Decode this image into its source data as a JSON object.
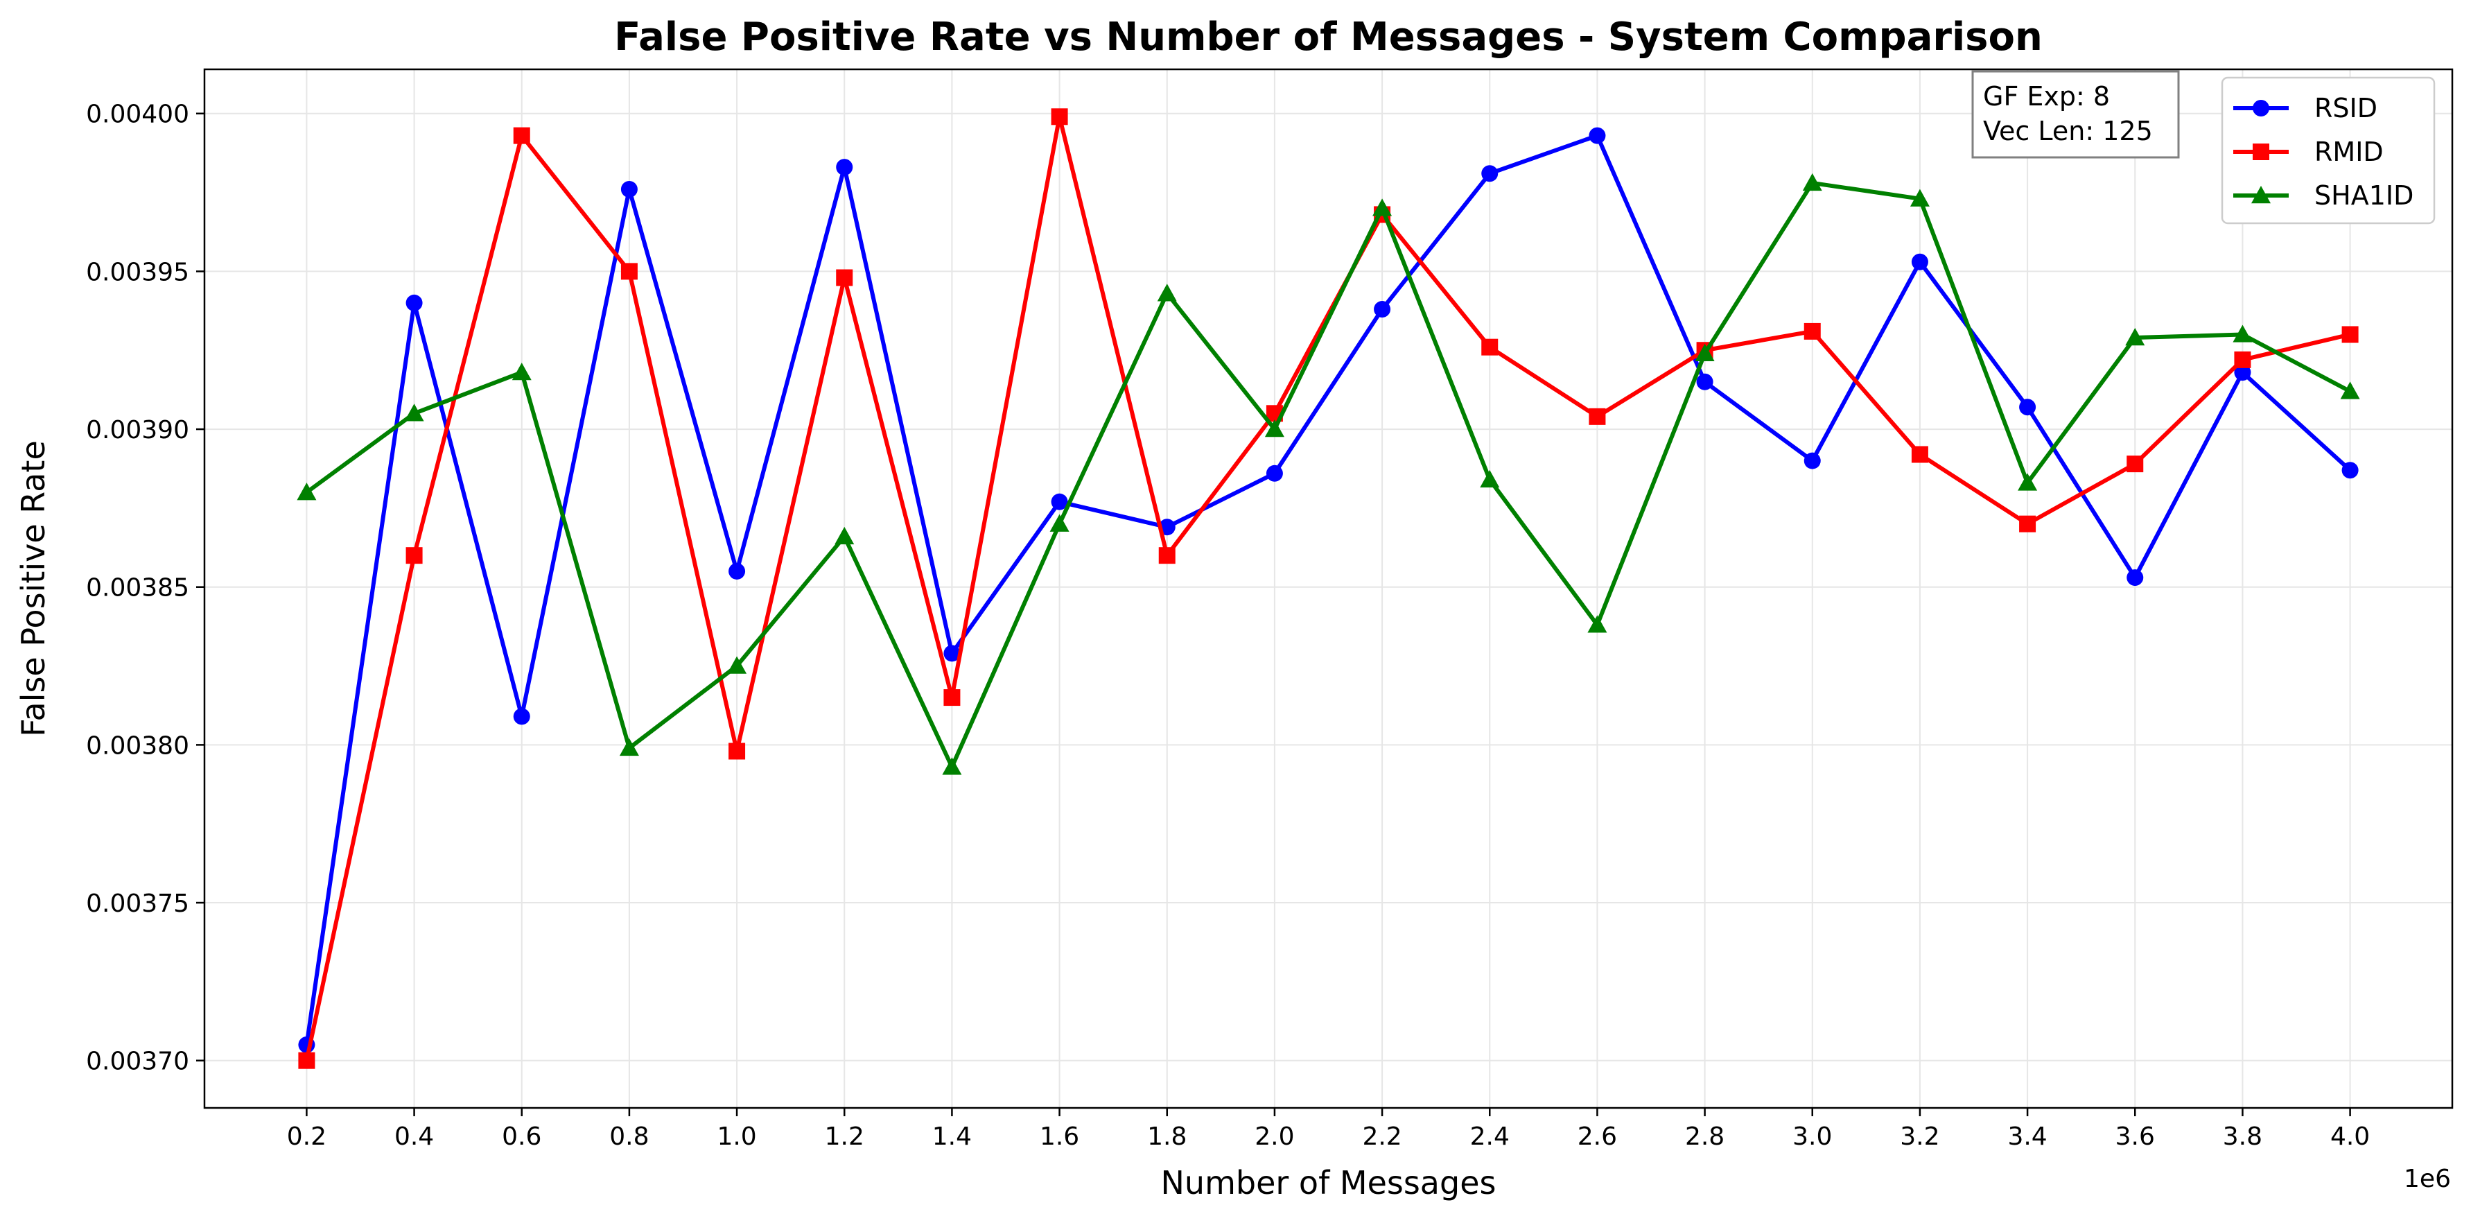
{
  "chart_data": {
    "type": "line",
    "title": "False Positive Rate vs Number of Messages - System Comparison",
    "xlabel": "Number of Messages",
    "ylabel": "False Positive Rate",
    "x_offset_label": "1e6",
    "x": [
      0.2,
      0.4,
      0.6,
      0.8,
      1.0,
      1.2,
      1.4,
      1.6,
      1.8,
      2.0,
      2.2,
      2.4,
      2.6,
      2.8,
      3.0,
      3.2,
      3.4,
      3.6,
      3.8,
      4.0
    ],
    "xticks": [
      "0.2",
      "0.4",
      "0.6",
      "0.8",
      "1.0",
      "1.2",
      "1.4",
      "1.6",
      "1.8",
      "2.0",
      "2.2",
      "2.4",
      "2.6",
      "2.8",
      "3.0",
      "3.2",
      "3.4",
      "3.6",
      "3.8",
      "4.0"
    ],
    "yticks": [
      0.0037,
      0.00375,
      0.0038,
      0.00385,
      0.0039,
      0.00395,
      0.004
    ],
    "ytick_labels": [
      "0.00370",
      "0.00375",
      "0.00380",
      "0.00385",
      "0.00390",
      "0.00395",
      "0.00400"
    ],
    "xlim": [
      0.01,
      4.19
    ],
    "ylim": [
      0.003685,
      0.004014
    ],
    "grid": true,
    "legend_position": "top-right",
    "series": [
      {
        "name": "RSID",
        "color": "#0000ff",
        "marker": "circle",
        "values": [
          0.003705,
          0.00394,
          0.003809,
          0.003976,
          0.003855,
          0.003983,
          0.003829,
          0.003877,
          0.003869,
          0.003886,
          0.003938,
          0.003981,
          0.003993,
          0.003915,
          0.00389,
          0.003953,
          0.003907,
          0.003853,
          0.003918,
          0.003887
        ]
      },
      {
        "name": "RMID",
        "color": "#ff0000",
        "marker": "square",
        "values": [
          0.0037,
          0.00386,
          0.003993,
          0.00395,
          0.003798,
          0.003948,
          0.003815,
          0.003999,
          0.00386,
          0.003905,
          0.003968,
          0.003926,
          0.003904,
          0.003925,
          0.003931,
          0.003892,
          0.00387,
          0.003889,
          0.003922,
          0.00393
        ]
      },
      {
        "name": "SHA1ID",
        "color": "#008000",
        "marker": "triangle",
        "values": [
          0.00388,
          0.003905,
          0.003918,
          0.003799,
          0.003825,
          0.003866,
          0.003793,
          0.00387,
          0.003943,
          0.0039,
          0.00397,
          0.003884,
          0.003838,
          0.003924,
          0.003978,
          0.003973,
          0.003883,
          0.003929,
          0.00393,
          0.003912
        ]
      }
    ],
    "annotation": {
      "line1": "GF Exp: 8",
      "line2": "Vec Len: 125"
    }
  }
}
